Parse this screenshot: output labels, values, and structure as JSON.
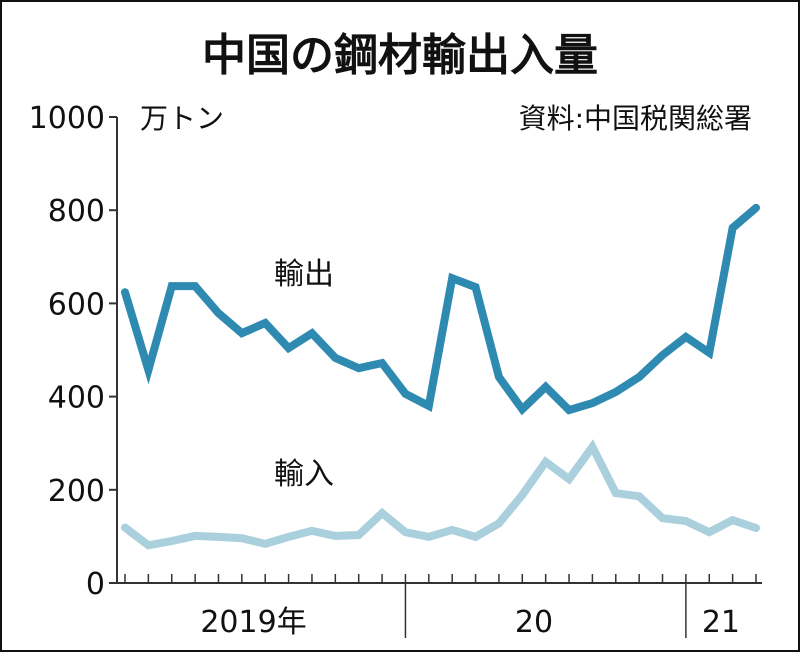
{
  "chart_data": {
    "type": "line",
    "title": "中国の鋼材輸出入量",
    "unit_label": "万トン",
    "source": "資料:中国税関総署",
    "ylim": [
      0,
      1000
    ],
    "yticks": [
      0,
      200,
      400,
      600,
      800,
      1000
    ],
    "ytick_labels": [
      "0",
      "200",
      "400",
      "600",
      "800",
      "1000"
    ],
    "x": [
      "2019-01",
      "2019-02",
      "2019-03",
      "2019-04",
      "2019-05",
      "2019-06",
      "2019-07",
      "2019-08",
      "2019-09",
      "2019-10",
      "2019-11",
      "2019-12",
      "2020-01",
      "2020-02",
      "2020-03",
      "2020-04",
      "2020-05",
      "2020-06",
      "2020-07",
      "2020-08",
      "2020-09",
      "2020-10",
      "2020-11",
      "2020-12",
      "2021-01",
      "2021-02",
      "2021-03",
      "2021-04"
    ],
    "year_labels": [
      {
        "label": "2019年",
        "start": 0,
        "end": 11
      },
      {
        "label": "20",
        "start": 12,
        "end": 23
      },
      {
        "label": "21",
        "start": 24,
        "end": 27
      }
    ],
    "series": [
      {
        "name": "輸出",
        "color": "#2e8ab0",
        "values": [
          624,
          457,
          637,
          637,
          579,
          536,
          558,
          504,
          536,
          483,
          461,
          472,
          406,
          380,
          654,
          635,
          442,
          373,
          421,
          371,
          386,
          410,
          442,
          489,
          528,
          494,
          762,
          805
        ]
      },
      {
        "name": "輸入",
        "color": "#aacfdd",
        "values": [
          119,
          81,
          90,
          101,
          99,
          96,
          84,
          99,
          112,
          101,
          103,
          150,
          109,
          99,
          114,
          99,
          128,
          189,
          260,
          223,
          292,
          193,
          186,
          139,
          133,
          109,
          135,
          118
        ]
      }
    ]
  }
}
